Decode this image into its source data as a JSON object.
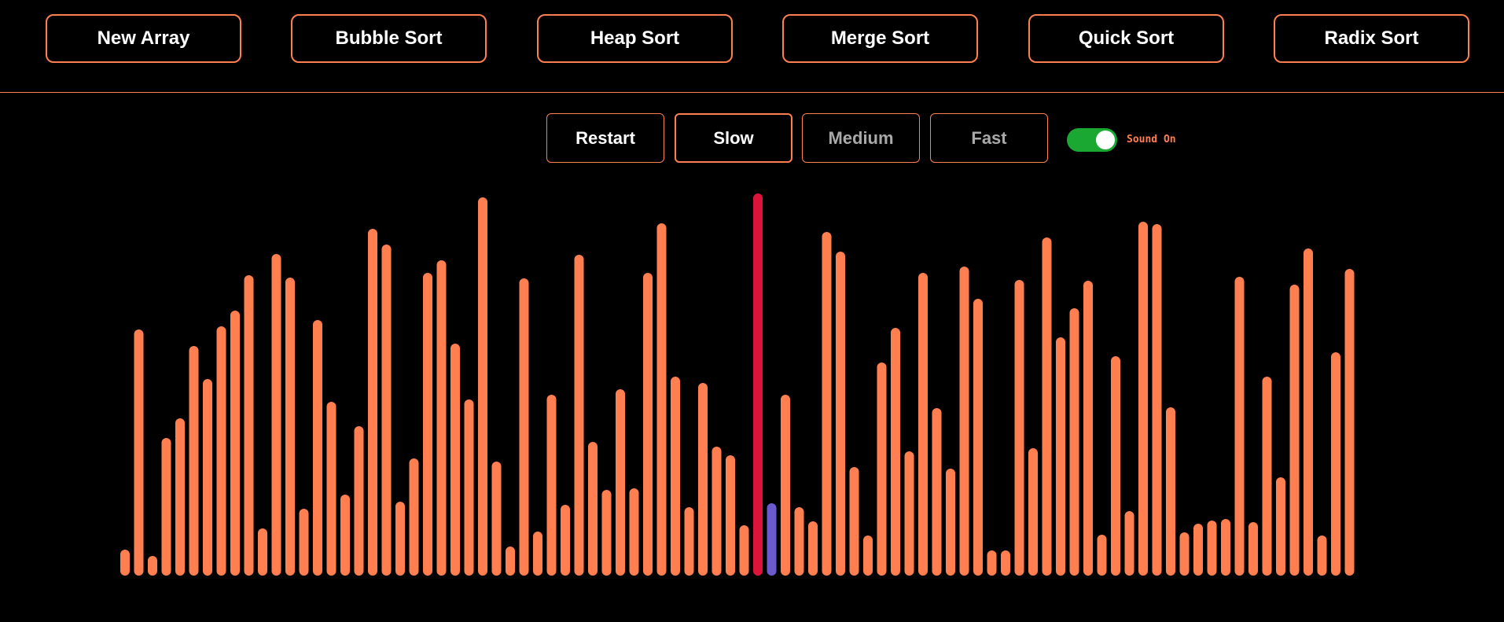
{
  "toolbar": {
    "buttons": [
      "New Array",
      "Bubble Sort",
      "Heap Sort",
      "Merge Sort",
      "Quick Sort",
      "Radix Sort"
    ]
  },
  "controls": {
    "restart": "Restart",
    "slow": "Slow",
    "medium": "Medium",
    "fast": "Fast",
    "active_speed": "slow",
    "sound_on": true,
    "sound_label": "Sound On"
  },
  "colors": {
    "accent": "#ff7f50",
    "bar_default": "#ff7f50",
    "bar_compare_primary": "#dc143c",
    "bar_compare_secondary": "#6a5acd",
    "toggle_on": "#1aa832",
    "background": "#000000"
  },
  "array": {
    "values": [
      33,
      313,
      25,
      175,
      200,
      292,
      250,
      317,
      337,
      382,
      60,
      409,
      379,
      85,
      325,
      221,
      103,
      190,
      441,
      421,
      94,
      149,
      385,
      401,
      295,
      224,
      481,
      145,
      37,
      378,
      56,
      230,
      90,
      408,
      170,
      109,
      237,
      111,
      385,
      448,
      253,
      87,
      245,
      164,
      153,
      64,
      486,
      92,
      230,
      87,
      69,
      437,
      412,
      138,
      51,
      271,
      315,
      158,
      385,
      213,
      136,
      393,
      352,
      32,
      32,
      376,
      162,
      430,
      303,
      340,
      375,
      52,
      279,
      82,
      450,
      447,
      214,
      55,
      66,
      70,
      72,
      380,
      68,
      253,
      125,
      370,
      416,
      51,
      284,
      390
    ],
    "compare_primary_index": 46,
    "compare_secondary_index": 47
  }
}
